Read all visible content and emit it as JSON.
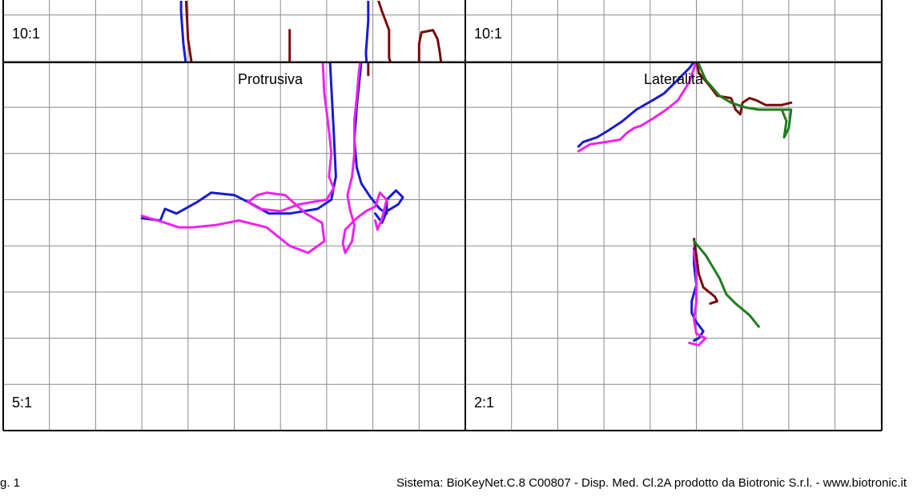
{
  "chart_data": [
    {
      "type": "line",
      "title": "",
      "scale_label": "10:1",
      "grid": true,
      "series": [
        {
          "color": "#1a1ad2",
          "points": [
            [
              3.9,
              -1.0
            ],
            [
              3.9,
              -0.4
            ],
            [
              3.9,
              -0.1
            ],
            [
              3.95,
              0.0
            ],
            [
              3.9,
              0.4
            ],
            [
              3.85,
              1.1
            ],
            [
              3.85,
              1.6
            ]
          ]
        },
        {
          "color": "#7a0a0a",
          "points": [
            [
              4.3,
              -1.0
            ],
            [
              4.15,
              -0.5
            ],
            [
              4.0,
              0.5
            ],
            [
              3.95,
              1.5
            ],
            [
              3.95,
              2.2
            ],
            [
              3.9,
              3.0
            ],
            [
              3.9,
              3.5
            ]
          ]
        },
        {
          "color": "#1a1ad2",
          "points": [
            [
              7.9,
              -1.0
            ],
            [
              7.9,
              -0.5
            ],
            [
              7.85,
              0.2
            ],
            [
              7.9,
              0.9
            ],
            [
              7.9,
              1.5
            ],
            [
              7.95,
              1.8
            ],
            [
              7.9,
              2.2
            ]
          ]
        },
        {
          "color": "#7a0a0a",
          "points": [
            [
              8.55,
              -1.0
            ],
            [
              8.5,
              -0.4
            ],
            [
              8.35,
              0.1
            ],
            [
              8.35,
              0.7
            ],
            [
              8.2,
              1.1
            ],
            [
              8.1,
              1.4
            ],
            [
              8.0,
              1.8
            ],
            [
              7.9,
              2.5
            ],
            [
              7.9,
              3.0
            ]
          ]
        },
        {
          "color": "#7a0a0a",
          "points": [
            [
              6.2,
              -1.0
            ],
            [
              6.2,
              -0.5
            ],
            [
              6.2,
              0.1
            ],
            [
              6.2,
              0.7
            ]
          ]
        },
        {
          "color": "#7a0a0a",
          "points": [
            [
              9.0,
              -1.0
            ],
            [
              9.0,
              0.4
            ],
            [
              9.05,
              0.65
            ],
            [
              9.3,
              0.7
            ],
            [
              9.4,
              0.5
            ],
            [
              9.45,
              0.2
            ],
            [
              9.5,
              -0.2
            ],
            [
              9.5,
              -1.0
            ]
          ]
        }
      ]
    },
    {
      "type": "line",
      "title": "",
      "scale_label": "10:1",
      "grid": true,
      "series": [
        {
          "color": "#ee22ee",
          "points": [
            [
              2.2,
              -1.0
            ],
            [
              2.25,
              -0.6
            ],
            [
              2.4,
              -0.2
            ],
            [
              2.55,
              -0.15
            ],
            [
              2.7,
              -0.4
            ],
            [
              2.7,
              -1.0
            ]
          ]
        },
        {
          "color": "#ee22ee",
          "points": [
            [
              6.8,
              -1.0
            ],
            [
              6.8,
              -0.5
            ],
            [
              6.8,
              -0.2
            ]
          ]
        }
      ]
    },
    {
      "type": "line",
      "title": "Protrusiva",
      "scale_label": "5:1",
      "grid": true,
      "series": [
        {
          "color": "#1a1ad2",
          "points": [
            [
              3.0,
              4.6
            ],
            [
              3.4,
              4.55
            ],
            [
              3.5,
              4.8
            ],
            [
              3.75,
              4.7
            ],
            [
              4.2,
              4.95
            ],
            [
              4.5,
              5.15
            ],
            [
              5.0,
              5.1
            ],
            [
              5.4,
              4.9
            ],
            [
              5.75,
              4.7
            ],
            [
              6.2,
              4.7
            ],
            [
              6.8,
              4.8
            ],
            [
              7.1,
              5.0
            ],
            [
              7.2,
              5.5
            ],
            [
              7.15,
              6.5
            ],
            [
              7.05,
              8.4
            ],
            [
              7.0,
              8.85
            ]
          ]
        },
        {
          "color": "#ee22ee",
          "points": [
            [
              3.0,
              4.65
            ],
            [
              3.5,
              4.5
            ],
            [
              3.8,
              4.4
            ],
            [
              4.1,
              4.4
            ],
            [
              4.6,
              4.45
            ],
            [
              5.1,
              4.55
            ],
            [
              5.7,
              4.4
            ],
            [
              6.2,
              4.0
            ],
            [
              6.6,
              3.85
            ],
            [
              6.95,
              4.1
            ],
            [
              6.9,
              4.5
            ],
            [
              6.55,
              4.7
            ],
            [
              6.1,
              5.1
            ],
            [
              5.7,
              5.15
            ],
            [
              5.5,
              5.1
            ],
            [
              5.3,
              4.95
            ],
            [
              5.55,
              4.8
            ],
            [
              6.0,
              4.75
            ],
            [
              6.4,
              4.9
            ],
            [
              6.7,
              4.95
            ],
            [
              7.0,
              5.0
            ],
            [
              7.15,
              5.25
            ],
            [
              7.05,
              5.5
            ],
            [
              7.1,
              6.0
            ],
            [
              7.05,
              6.5
            ],
            [
              6.95,
              7.3
            ],
            [
              6.9,
              8.3
            ],
            [
              7.0,
              8.9
            ]
          ]
        },
        {
          "color": "#1a1ad2",
          "points": [
            [
              8.0,
              8.9
            ],
            [
              7.85,
              8.5
            ],
            [
              7.75,
              8.0
            ],
            [
              7.7,
              7.5
            ],
            [
              7.65,
              7.0
            ],
            [
              7.6,
              6.3
            ],
            [
              7.65,
              5.7
            ],
            [
              7.75,
              5.35
            ],
            [
              7.95,
              5.05
            ],
            [
              8.15,
              4.8
            ],
            [
              8.3,
              4.7
            ],
            [
              8.3,
              5.0
            ],
            [
              8.5,
              5.2
            ],
            [
              8.65,
              5.05
            ],
            [
              8.55,
              4.9
            ],
            [
              8.3,
              4.75
            ],
            [
              8.2,
              4.5
            ],
            [
              8.05,
              4.7
            ]
          ]
        },
        {
          "color": "#ee22ee",
          "points": [
            [
              8.0,
              8.95
            ],
            [
              7.8,
              8.4
            ],
            [
              7.7,
              7.8
            ],
            [
              7.65,
              7.2
            ],
            [
              7.6,
              6.7
            ],
            [
              7.6,
              6.0
            ],
            [
              7.55,
              5.5
            ],
            [
              7.45,
              5.1
            ],
            [
              7.5,
              4.8
            ],
            [
              7.6,
              4.45
            ],
            [
              7.55,
              4.1
            ],
            [
              7.4,
              3.85
            ],
            [
              7.35,
              4.05
            ],
            [
              7.4,
              4.35
            ],
            [
              7.65,
              4.6
            ],
            [
              7.85,
              4.75
            ],
            [
              8.05,
              4.85
            ],
            [
              8.15,
              5.15
            ],
            [
              8.3,
              5.0
            ],
            [
              8.2,
              4.6
            ],
            [
              8.1,
              4.35
            ],
            [
              8.05,
              4.55
            ]
          ]
        },
        {
          "color": "#7a0a0a",
          "points": [
            [
              7.9,
              7.7
            ],
            [
              7.9,
              8.0
            ],
            [
              7.95,
              8.4
            ],
            [
              7.95,
              8.8
            ],
            [
              8.0,
              9.5
            ],
            [
              8.0,
              10.0
            ]
          ]
        }
      ]
    },
    {
      "type": "line",
      "title": "Lateralità",
      "scale_label": "2:1",
      "grid": true,
      "series": [
        {
          "color": "#1a1ad2",
          "points": [
            [
              2.45,
              6.15
            ],
            [
              2.55,
              6.25
            ],
            [
              2.85,
              6.35
            ],
            [
              3.1,
              6.5
            ],
            [
              3.4,
              6.7
            ],
            [
              3.7,
              6.95
            ],
            [
              4.05,
              7.15
            ],
            [
              4.3,
              7.3
            ],
            [
              4.55,
              7.55
            ],
            [
              4.85,
              7.85
            ],
            [
              5.0,
              8.05
            ]
          ]
        },
        {
          "color": "#ee22ee",
          "points": [
            [
              2.45,
              6.05
            ],
            [
              2.7,
              6.2
            ],
            [
              3.05,
              6.25
            ],
            [
              3.35,
              6.3
            ],
            [
              3.5,
              6.45
            ],
            [
              3.65,
              6.55
            ],
            [
              3.8,
              6.6
            ],
            [
              4.05,
              6.75
            ],
            [
              4.35,
              6.95
            ],
            [
              4.6,
              7.15
            ],
            [
              4.85,
              7.55
            ],
            [
              5.0,
              8.0
            ]
          ]
        },
        {
          "color": "#7a0a0a",
          "points": [
            [
              5.0,
              8.05
            ],
            [
              5.05,
              7.75
            ],
            [
              5.3,
              7.45
            ],
            [
              5.45,
              7.25
            ],
            [
              5.75,
              7.2
            ],
            [
              5.85,
              6.95
            ],
            [
              5.95,
              6.85
            ],
            [
              6.0,
              7.1
            ],
            [
              6.15,
              7.2
            ],
            [
              6.3,
              7.15
            ],
            [
              6.5,
              7.05
            ],
            [
              6.85,
              7.05
            ],
            [
              7.05,
              7.1
            ]
          ]
        },
        {
          "color": "#1e7d1e",
          "points": [
            [
              5.0,
              8.05
            ],
            [
              5.2,
              7.6
            ],
            [
              5.5,
              7.25
            ],
            [
              5.75,
              7.1
            ],
            [
              6.05,
              7.0
            ],
            [
              6.35,
              6.95
            ],
            [
              6.6,
              6.95
            ],
            [
              7.05,
              6.95
            ],
            [
              7.0,
              6.55
            ],
            [
              6.9,
              6.35
            ],
            [
              6.95,
              6.7
            ],
            [
              6.85,
              6.95
            ]
          ]
        },
        {
          "color": "#1a1ad2",
          "points": [
            [
              4.95,
              3.95
            ],
            [
              4.95,
              3.6
            ],
            [
              5.0,
              3.15
            ],
            [
              4.9,
              2.8
            ],
            [
              4.9,
              2.55
            ],
            [
              5.0,
              2.35
            ],
            [
              5.15,
              2.15
            ],
            [
              5.05,
              2.0
            ],
            [
              4.95,
              1.95
            ]
          ]
        },
        {
          "color": "#ee22ee",
          "points": [
            [
              4.95,
              3.9
            ],
            [
              5.0,
              3.5
            ],
            [
              5.0,
              3.15
            ],
            [
              5.0,
              2.8
            ],
            [
              4.95,
              2.4
            ],
            [
              5.0,
              2.1
            ],
            [
              5.2,
              2.0
            ],
            [
              5.05,
              1.85
            ],
            [
              4.85,
              1.9
            ]
          ]
        },
        {
          "color": "#7a0a0a",
          "points": [
            [
              4.95,
              4.15
            ],
            [
              5.0,
              3.8
            ],
            [
              5.05,
              3.4
            ],
            [
              5.15,
              3.1
            ],
            [
              5.4,
              2.9
            ],
            [
              5.45,
              2.8
            ],
            [
              5.3,
              2.75
            ]
          ]
        },
        {
          "color": "#1e7d1e",
          "points": [
            [
              4.95,
              4.1
            ],
            [
              5.2,
              3.8
            ],
            [
              5.5,
              3.3
            ],
            [
              5.65,
              2.95
            ],
            [
              5.85,
              2.75
            ],
            [
              6.15,
              2.5
            ],
            [
              6.35,
              2.25
            ]
          ]
        }
      ]
    }
  ],
  "footer": {
    "left": "g. 1",
    "right": "Sistema: BioKeyNet.C.8 C00807 - Disp. Med. Cl.2A prodotto da Biotronic S.r.l. - www.biotronic.it"
  }
}
